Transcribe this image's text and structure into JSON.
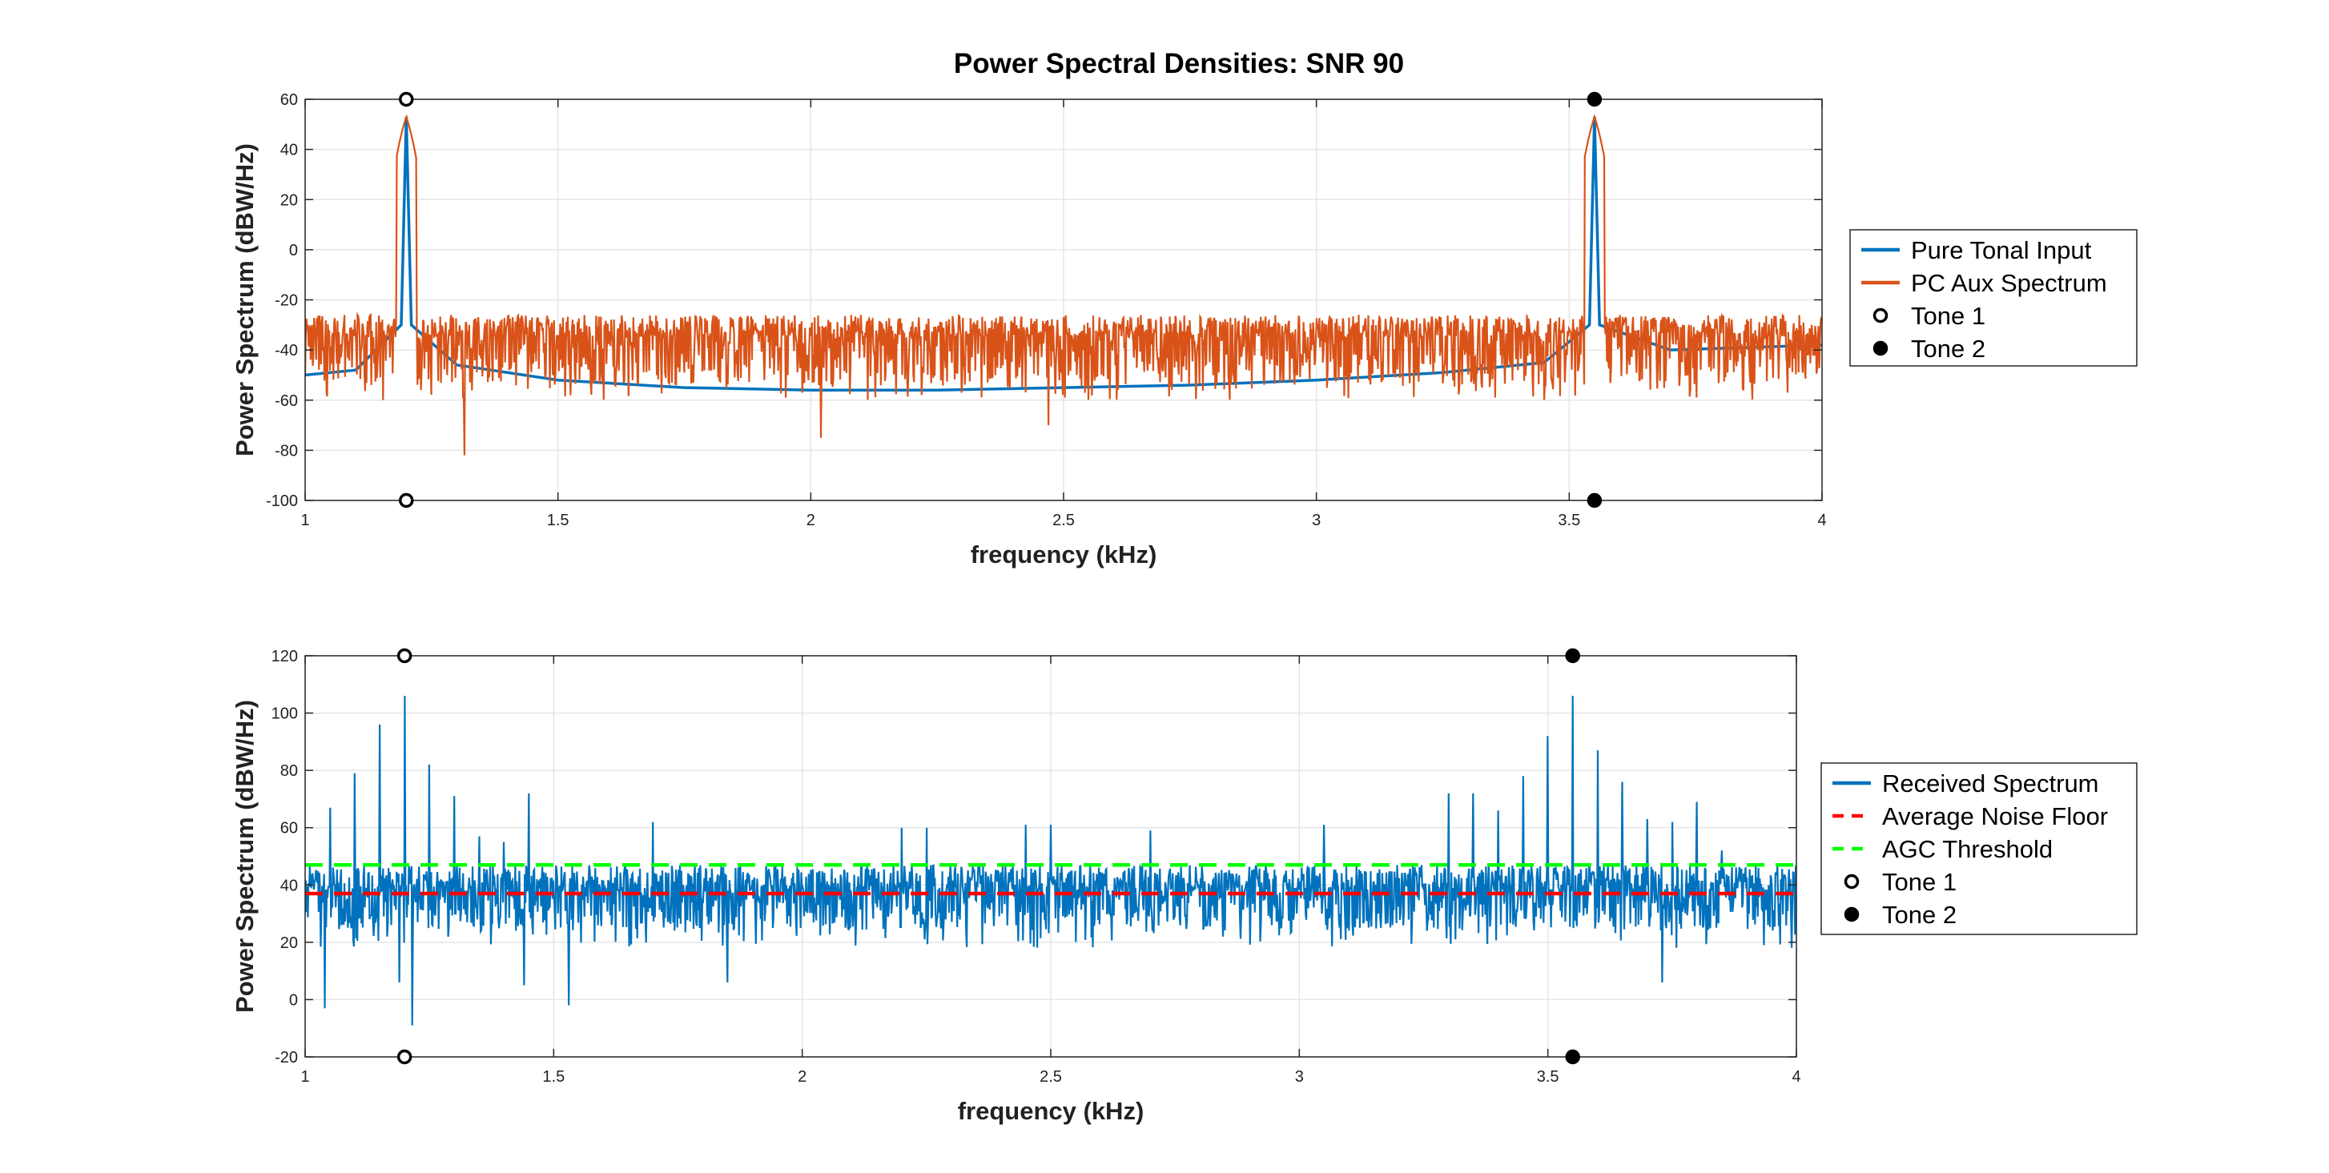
{
  "figure_title": "Power Spectral Densities: SNR 90",
  "chart_data": [
    {
      "type": "line",
      "title": "Power Spectral Densities: SNR 90",
      "xlabel": "frequency (kHz)",
      "ylabel": "Power Spectrum (dBW/Hz)",
      "xlim": [
        1,
        4
      ],
      "ylim": [
        -100,
        60
      ],
      "xticks": [
        1,
        1.5,
        2,
        2.5,
        3,
        3.5,
        4
      ],
      "xtick_labels": [
        "1",
        "1.5",
        "2",
        "2.5",
        "3",
        "3.5",
        "4"
      ],
      "yticks": [
        -100,
        -80,
        -60,
        -40,
        -20,
        0,
        20,
        40,
        60
      ],
      "ytick_labels": [
        "-100",
        "-80",
        "-60",
        "-40",
        "-20",
        "0",
        "20",
        "40",
        "60"
      ],
      "grid": true,
      "legend_position": "outside-right",
      "series": [
        {
          "name": "Pure Tonal Input",
          "color": "#0072BD",
          "style": "solid",
          "x": [
            1.0,
            1.1,
            1.19,
            1.2,
            1.21,
            1.3,
            1.5,
            1.75,
            2.0,
            2.25,
            2.5,
            2.75,
            3.0,
            3.25,
            3.45,
            3.54,
            3.55,
            3.56,
            3.7,
            4.0
          ],
          "y": [
            -50,
            -48,
            -30,
            53,
            -30,
            -46,
            -52,
            -55,
            -56,
            -56,
            -55,
            -54,
            -52,
            -49,
            -45,
            -30,
            53,
            -30,
            -40,
            -38
          ]
        },
        {
          "name": "PC Aux Spectrum",
          "color": "#D95319",
          "style": "noisy",
          "baseline": -38,
          "noise_low": -60,
          "noise_high": -26,
          "peaks": [
            {
              "x": 1.2,
              "y": 53
            },
            {
              "x": 3.55,
              "y": 53
            }
          ],
          "dips": [
            {
              "x": 1.315,
              "y": -82
            },
            {
              "x": 2.02,
              "y": -75
            },
            {
              "x": 2.47,
              "y": -70
            }
          ]
        },
        {
          "name": "Tone 1",
          "marker": "open-circle",
          "color": "#000000",
          "x": [
            1.2,
            1.2
          ],
          "y": [
            60,
            -100
          ]
        },
        {
          "name": "Tone 2",
          "marker": "filled-circle",
          "color": "#000000",
          "x": [
            3.55,
            3.55
          ],
          "y": [
            60,
            -100
          ]
        }
      ]
    },
    {
      "type": "line",
      "title": "",
      "xlabel": "frequency (kHz)",
      "ylabel": "Power Spectrum (dBW/Hz)",
      "xlim": [
        1,
        4
      ],
      "ylim": [
        -20,
        120
      ],
      "xticks": [
        1,
        1.5,
        2,
        2.5,
        3,
        3.5,
        4
      ],
      "xtick_labels": [
        "1",
        "1.5",
        "2",
        "2.5",
        "3",
        "3.5",
        "4"
      ],
      "yticks": [
        -20,
        0,
        20,
        40,
        60,
        80,
        100,
        120
      ],
      "ytick_labels": [
        "-20",
        "0",
        "20",
        "40",
        "60",
        "80",
        "100",
        "120"
      ],
      "grid": true,
      "legend_position": "outside-right",
      "series": [
        {
          "name": "Received Spectrum",
          "color": "#0072BD",
          "style": "noisy",
          "baseline": 34,
          "noise_low": 18,
          "noise_high": 47,
          "peaks": [
            {
              "x": 1.05,
              "y": 67
            },
            {
              "x": 1.1,
              "y": 79
            },
            {
              "x": 1.15,
              "y": 96
            },
            {
              "x": 1.2,
              "y": 106
            },
            {
              "x": 1.25,
              "y": 82
            },
            {
              "x": 1.3,
              "y": 71
            },
            {
              "x": 1.35,
              "y": 57
            },
            {
              "x": 1.4,
              "y": 55
            },
            {
              "x": 1.45,
              "y": 72
            },
            {
              "x": 1.7,
              "y": 62
            },
            {
              "x": 2.2,
              "y": 60
            },
            {
              "x": 2.25,
              "y": 60
            },
            {
              "x": 2.45,
              "y": 61
            },
            {
              "x": 2.5,
              "y": 61
            },
            {
              "x": 2.7,
              "y": 59
            },
            {
              "x": 3.05,
              "y": 61
            },
            {
              "x": 3.3,
              "y": 72
            },
            {
              "x": 3.35,
              "y": 72
            },
            {
              "x": 3.4,
              "y": 66
            },
            {
              "x": 3.45,
              "y": 78
            },
            {
              "x": 3.5,
              "y": 92
            },
            {
              "x": 3.55,
              "y": 106
            },
            {
              "x": 3.6,
              "y": 87
            },
            {
              "x": 3.65,
              "y": 76
            },
            {
              "x": 3.7,
              "y": 63
            },
            {
              "x": 3.75,
              "y": 62
            },
            {
              "x": 3.8,
              "y": 69
            },
            {
              "x": 3.85,
              "y": 52
            }
          ],
          "dips": [
            {
              "x": 1.04,
              "y": -3
            },
            {
              "x": 1.19,
              "y": 6
            },
            {
              "x": 1.215,
              "y": -9
            },
            {
              "x": 1.44,
              "y": 5
            },
            {
              "x": 1.53,
              "y": -2
            },
            {
              "x": 1.85,
              "y": 6
            },
            {
              "x": 3.73,
              "y": 6
            }
          ]
        },
        {
          "name": "Average Noise Floor",
          "color": "#FF0000",
          "style": "dashed",
          "x": [
            1,
            4
          ],
          "y": [
            37,
            37
          ]
        },
        {
          "name": "AGC Threshold",
          "color": "#00FF00",
          "style": "dashed",
          "x": [
            1,
            4
          ],
          "y": [
            47,
            47
          ]
        },
        {
          "name": "Tone 1",
          "marker": "open-circle",
          "color": "#000000",
          "x": [
            1.2,
            1.2
          ],
          "y": [
            120,
            -20
          ]
        },
        {
          "name": "Tone 2",
          "marker": "filled-circle",
          "color": "#000000",
          "x": [
            3.55,
            3.55
          ],
          "y": [
            120,
            -20
          ]
        }
      ]
    }
  ]
}
